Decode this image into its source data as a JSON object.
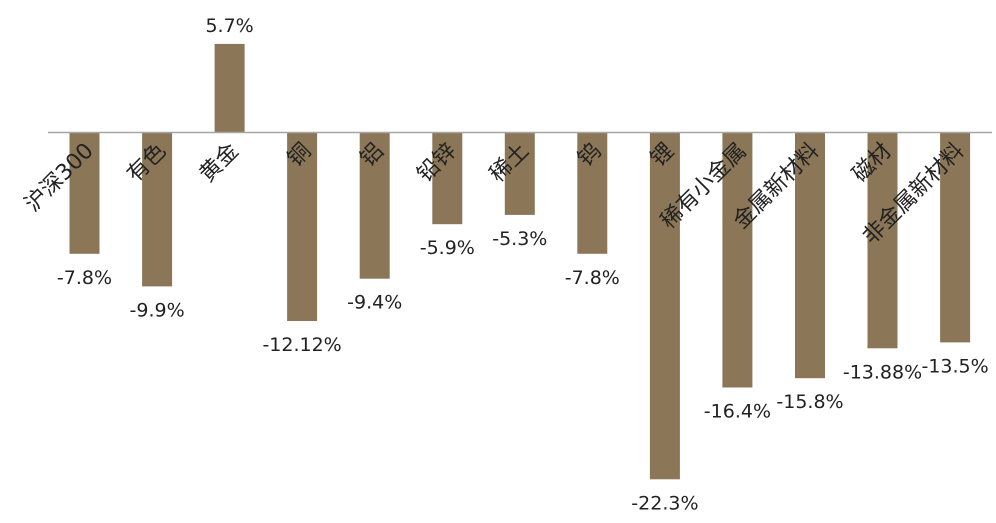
{
  "chart_data": {
    "type": "bar",
    "categories": [
      "沪深300",
      "有色",
      "黄金",
      "铜",
      "铝",
      "铅锌",
      "稀土",
      "钨",
      "锂",
      "稀有小金属",
      "金属新材料",
      "磁材",
      "非金属新材料"
    ],
    "values": [
      -7.8,
      -9.9,
      5.7,
      -12.12,
      -9.4,
      -5.9,
      -5.3,
      -7.8,
      -22.3,
      -16.4,
      -15.8,
      -13.88,
      -13.5
    ],
    "value_labels": [
      "-7.8%",
      "-9.9%",
      "5.7%",
      "-12.12%",
      "-9.4%",
      "-5.9%",
      "-5.3%",
      "-7.8%",
      "-22.3%",
      "-16.4%",
      "-15.8%",
      "-13.88%",
      "-13.5%"
    ],
    "title": "",
    "xlabel": "",
    "ylabel": "",
    "ylim": [
      -22.3,
      5.7
    ],
    "grid": false,
    "legend": "none",
    "bar_color": "#8b7757",
    "axis_color": "#a6a6a6"
  }
}
